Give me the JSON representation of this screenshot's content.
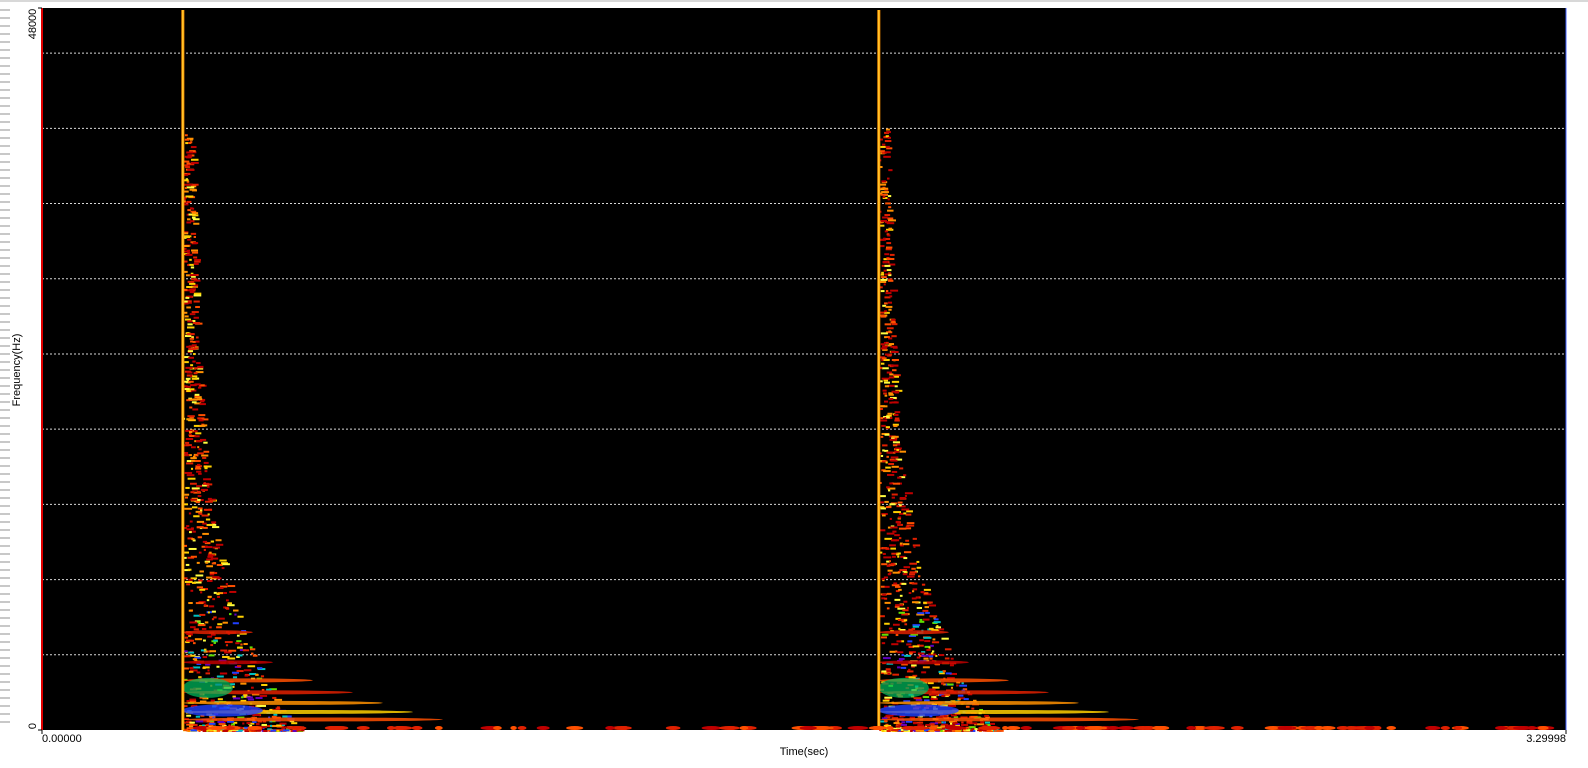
{
  "chart_data": {
    "type": "spectrogram",
    "x_label": "Time(sec)",
    "y_label": "Frequency(Hz)",
    "xlim": [
      0,
      3.29998
    ],
    "xticks": [
      {
        "value": 0,
        "label": "0.00000"
      },
      {
        "value": 3.29998,
        "label": "3.29998"
      }
    ],
    "ylim": [
      0,
      48000
    ],
    "yticks": [
      0,
      48000
    ],
    "ygrid": [
      5000,
      10000,
      15000,
      20000,
      25000,
      30000,
      35000,
      40000,
      45000
    ],
    "onsets": [
      0.305,
      1.812
    ],
    "background": "#000000",
    "grid_color": "#d8d8d8"
  }
}
